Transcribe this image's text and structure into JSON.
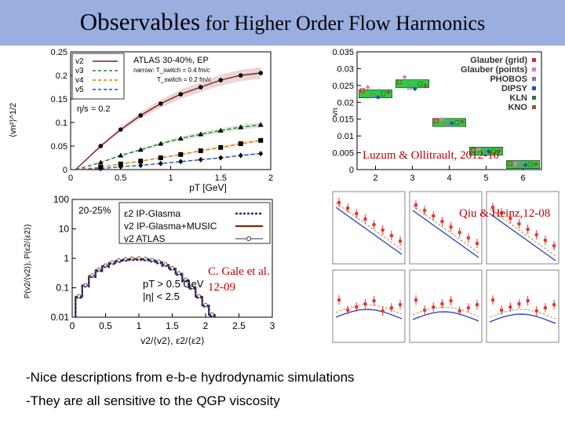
{
  "slide": {
    "title_part1": "Observables",
    "title_part2": " for Higher Order Flow Harmonics",
    "bullets": [
      "-Nice descriptions from e-b-e hydrodynamic simulations",
      "-They are all sensitive to the QGP viscosity"
    ],
    "credits": {
      "luzum": "Luzum & Ollitrault, 2012-10",
      "qiu": "Qiu & Heinz,12-08",
      "gale_line1": "C. Gale et al.",
      "gale_line2": "12-09"
    }
  },
  "chart_data": [
    {
      "type": "line",
      "id": "atlas-vn-pt",
      "xlabel": "pT [GeV]",
      "ylabel": "⟨vn²⟩^1/2",
      "xlim": [
        0,
        2
      ],
      "ylim": [
        0,
        0.25
      ],
      "xticks": [
        "0",
        "0.5",
        "1",
        "1.5",
        "2"
      ],
      "yticks": [
        "0",
        "0.05",
        "0.1",
        "0.15",
        "0.2",
        "0.25"
      ],
      "legend_labels": [
        "v2",
        "v3",
        "v4",
        "v5"
      ],
      "legend_title": "ATLAS 30-40%, EP",
      "legend_line2": "narrow: T_switch = 0.4 fm/c",
      "legend_line3": "T_switch = 0.2 fm/c",
      "annotation": "η/s = 0.2",
      "series": [
        {
          "name": "v2",
          "color": "#8b1a1a",
          "x": [
            0.3,
            0.5,
            0.7,
            0.9,
            1.1,
            1.3,
            1.5,
            1.7,
            1.9
          ],
          "y": [
            0.05,
            0.085,
            0.115,
            0.14,
            0.16,
            0.175,
            0.19,
            0.2,
            0.205
          ]
        },
        {
          "name": "v3",
          "color": "#2e7d32",
          "x": [
            0.3,
            0.5,
            0.7,
            0.9,
            1.1,
            1.3,
            1.5,
            1.7,
            1.9
          ],
          "y": [
            0.015,
            0.03,
            0.042,
            0.055,
            0.066,
            0.075,
            0.083,
            0.09,
            0.095
          ]
        },
        {
          "name": "v4",
          "color": "#e07b00",
          "x": [
            0.3,
            0.5,
            0.7,
            0.9,
            1.1,
            1.3,
            1.5,
            1.7,
            1.9
          ],
          "y": [
            0.005,
            0.012,
            0.018,
            0.025,
            0.032,
            0.04,
            0.047,
            0.055,
            0.062
          ]
        },
        {
          "name": "v5",
          "color": "#1f4fbf",
          "x": [
            0.3,
            0.5,
            0.7,
            0.9,
            1.1,
            1.3,
            1.5,
            1.7,
            1.9
          ],
          "y": [
            0.002,
            0.006,
            0.009,
            0.013,
            0.017,
            0.021,
            0.025,
            0.03,
            0.034
          ]
        }
      ]
    },
    {
      "type": "scatter",
      "id": "vn-harmonic",
      "xlabel": "n",
      "ylabel": "vn",
      "xlim": [
        1.5,
        6.5
      ],
      "ylim": [
        0,
        0.035
      ],
      "xticks": [
        "2",
        "3",
        "4",
        "5",
        "6"
      ],
      "yticks": [
        "0",
        "0.005",
        "0.01",
        "0.015",
        "0.02",
        "0.025",
        "0.03",
        "0.035"
      ],
      "legend_labels": [
        "Glauber (grid)",
        "Glauber (points)",
        "PHOBOS",
        "DIPSY",
        "KLN",
        "KNO"
      ],
      "bands": [
        {
          "n": 2,
          "y": 0.0225
        },
        {
          "n": 3,
          "y": 0.0255
        },
        {
          "n": 4,
          "y": 0.014
        },
        {
          "n": 5,
          "y": 0.0055
        },
        {
          "n": 6,
          "y": 0.0015
        }
      ],
      "points": [
        {
          "n": 2,
          "values": [
            0.0235,
            0.0245,
            0.022,
            0.0215,
            0.0225,
            0.023
          ]
        },
        {
          "n": 3,
          "values": [
            0.026,
            0.0275,
            0.0245,
            0.024,
            0.0255,
            0.025
          ]
        },
        {
          "n": 4,
          "values": [
            0.0145,
            0.015,
            0.0135,
            0.0138,
            0.014,
            0.0143
          ]
        },
        {
          "n": 5,
          "values": [
            0.0058,
            0.006,
            0.0052,
            0.0054,
            0.0055,
            0.0056
          ]
        },
        {
          "n": 6,
          "values": [
            0.0018,
            0.0018,
            0.0013,
            0.0014,
            0.0015,
            0.0016
          ]
        }
      ]
    },
    {
      "type": "line",
      "id": "v2-distribution",
      "xlabel": "v2/⟨v2⟩, ε2/⟨ε2⟩",
      "ylabel": "P(v2/⟨v2⟩), P(ε2/⟨ε2⟩)",
      "xlim": [
        0,
        3
      ],
      "ylim_log": [
        0.01,
        100
      ],
      "xticks": [
        "0",
        "0.5",
        "1",
        "1.5",
        "2",
        "2.5",
        "3"
      ],
      "yticks": [
        "0.01",
        "0.1",
        "1",
        "10",
        "100"
      ],
      "centrality": "20-25%",
      "legend_labels": [
        "ε2 IP-Glasma",
        "v2 IP-Glasma+MUSIC",
        "v2 ATLAS"
      ],
      "cut1": "pT > 0.5 GeV",
      "cut2": "|η| < 2.5",
      "x": [
        0.1,
        0.2,
        0.3,
        0.4,
        0.5,
        0.6,
        0.7,
        0.8,
        0.9,
        1.0,
        1.1,
        1.2,
        1.3,
        1.4,
        1.5,
        1.6,
        1.7,
        1.8,
        1.9,
        2.0,
        2.1
      ],
      "values": [
        0.05,
        0.12,
        0.25,
        0.4,
        0.55,
        0.7,
        0.82,
        0.9,
        0.95,
        0.96,
        0.93,
        0.85,
        0.74,
        0.6,
        0.45,
        0.3,
        0.18,
        0.1,
        0.05,
        0.025,
        0.012
      ]
    },
    {
      "type": "line",
      "id": "qiu-heinz-grid",
      "panels": 6,
      "note": "Six small panels of vn vs p_T with red data points and model curves"
    }
  ]
}
